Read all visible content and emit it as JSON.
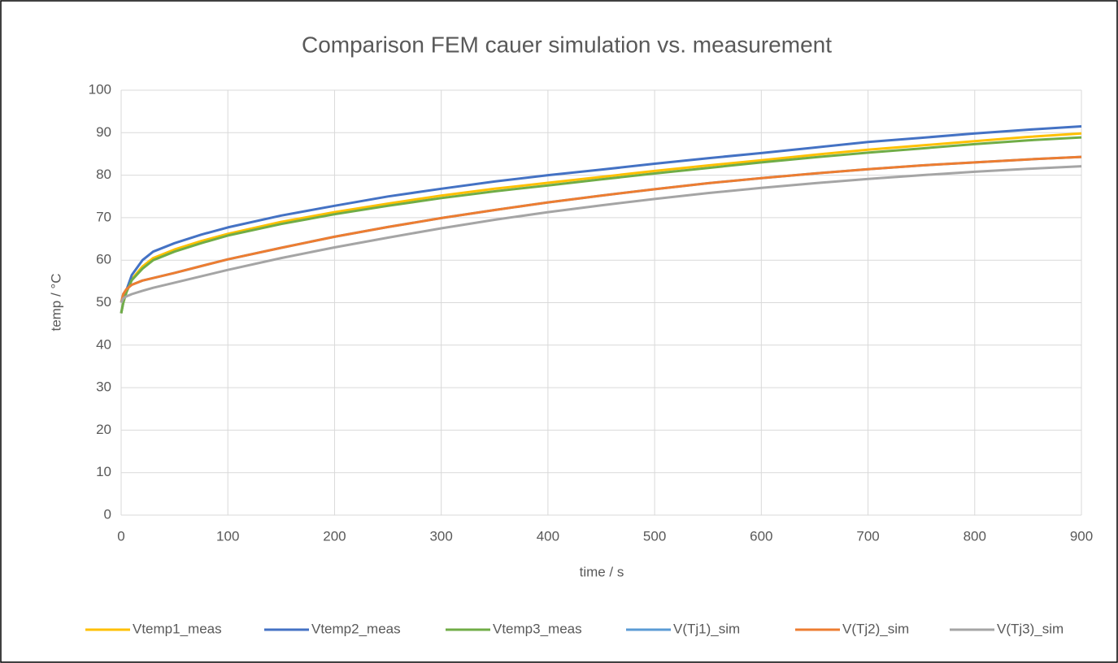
{
  "chart_data": {
    "type": "line",
    "title": "Comparison FEM cauer simulation vs. measurement",
    "x_label": "time / s",
    "y_label": "temp / °C",
    "x": [
      0,
      2,
      5,
      10,
      20,
      30,
      50,
      75,
      100,
      150,
      200,
      250,
      300,
      350,
      400,
      450,
      500,
      550,
      600,
      650,
      700,
      750,
      800,
      850,
      900
    ],
    "series": [
      {
        "name": "Vtemp1_meas",
        "color": "#ffc000",
        "values": [
          47.5,
          50,
          52.5,
          55.5,
          58.5,
          60.5,
          62.5,
          64.5,
          66.2,
          69,
          71.3,
          73.3,
          75.2,
          76.8,
          78.2,
          79.6,
          81,
          82.3,
          83.5,
          84.8,
          86,
          87,
          88,
          89,
          89.8
        ]
      },
      {
        "name": "Vtemp2_meas",
        "color": "#4472c4",
        "values": [
          47.5,
          50,
          53,
          56.5,
          60,
          62,
          64,
          66,
          67.7,
          70.5,
          72.8,
          75,
          76.8,
          78.5,
          80,
          81.3,
          82.7,
          84,
          85.2,
          86.5,
          87.8,
          88.8,
          89.8,
          90.7,
          91.5
        ]
      },
      {
        "name": "Vtemp3_meas",
        "color": "#70ad47",
        "values": [
          47.5,
          50,
          52.5,
          55.3,
          58,
          60,
          62,
          64,
          65.8,
          68.5,
          70.8,
          72.8,
          74.6,
          76.2,
          77.6,
          79,
          80.4,
          81.7,
          83,
          84.2,
          85.3,
          86.3,
          87.3,
          88.2,
          88.9
        ]
      },
      {
        "name": "V(Tj1)_sim",
        "color": "#5b9bd5",
        "values": [
          50,
          52,
          53.2,
          54.2,
          55.2,
          55.8,
          57,
          58.6,
          60.2,
          62.9,
          65.5,
          67.8,
          69.9,
          71.8,
          73.6,
          75.2,
          76.7,
          78.1,
          79.3,
          80.4,
          81.4,
          82.3,
          83,
          83.7,
          84.3
        ]
      },
      {
        "name": "V(Tj2)_sim",
        "color": "#ed7d31",
        "values": [
          50,
          52,
          53.2,
          54.2,
          55.2,
          55.8,
          57,
          58.6,
          60.2,
          62.9,
          65.5,
          67.8,
          69.9,
          71.8,
          73.6,
          75.2,
          76.7,
          78.1,
          79.3,
          80.4,
          81.4,
          82.3,
          83,
          83.7,
          84.3
        ]
      },
      {
        "name": "V(Tj3)_sim",
        "color": "#a5a5a5",
        "values": [
          50,
          51,
          51.5,
          52,
          52.8,
          53.5,
          54.7,
          56.2,
          57.7,
          60.5,
          63,
          65.3,
          67.5,
          69.5,
          71.3,
          72.9,
          74.4,
          75.8,
          77,
          78.1,
          79.1,
          80,
          80.8,
          81.5,
          82.1
        ]
      }
    ],
    "xlim": [
      0,
      900
    ],
    "xticks": [
      0,
      100,
      200,
      300,
      400,
      500,
      600,
      700,
      800,
      900
    ],
    "ylim": [
      0,
      100
    ],
    "yticks": [
      0,
      10,
      20,
      30,
      40,
      50,
      60,
      70,
      80,
      90,
      100
    ],
    "grid": true,
    "legend": "bottom"
  }
}
